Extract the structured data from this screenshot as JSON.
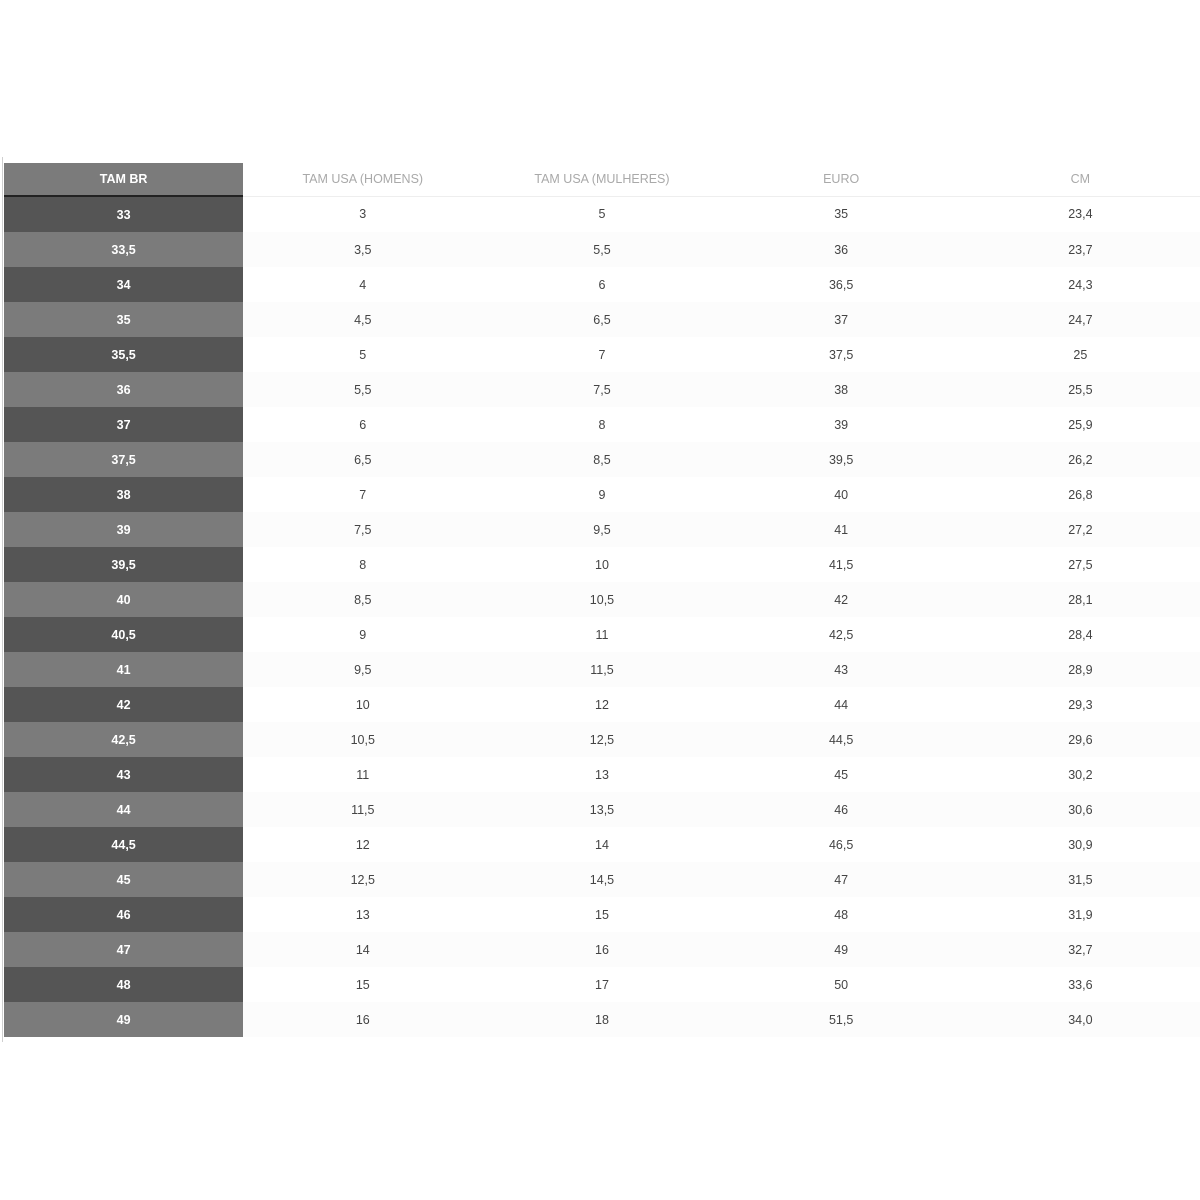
{
  "table": {
    "headers": [
      "TAM BR",
      "TAM USA (HOMENS)",
      "TAM USA (MULHERES)",
      "EURO",
      "CM"
    ],
    "rows": [
      [
        "33",
        "3",
        "5",
        "35",
        "23,4"
      ],
      [
        "33,5",
        "3,5",
        "5,5",
        "36",
        "23,7"
      ],
      [
        "34",
        "4",
        "6",
        "36,5",
        "24,3"
      ],
      [
        "35",
        "4,5",
        "6,5",
        "37",
        "24,7"
      ],
      [
        "35,5",
        "5",
        "7",
        "37,5",
        "25"
      ],
      [
        "36",
        "5,5",
        "7,5",
        "38",
        "25,5"
      ],
      [
        "37",
        "6",
        "8",
        "39",
        "25,9"
      ],
      [
        "37,5",
        "6,5",
        "8,5",
        "39,5",
        "26,2"
      ],
      [
        "38",
        "7",
        "9",
        "40",
        "26,8"
      ],
      [
        "39",
        "7,5",
        "9,5",
        "41",
        "27,2"
      ],
      [
        "39,5",
        "8",
        "10",
        "41,5",
        "27,5"
      ],
      [
        "40",
        "8,5",
        "10,5",
        "42",
        "28,1"
      ],
      [
        "40,5",
        "9",
        "11",
        "42,5",
        "28,4"
      ],
      [
        "41",
        "9,5",
        "11,5",
        "43",
        "28,9"
      ],
      [
        "42",
        "10",
        "12",
        "44",
        "29,3"
      ],
      [
        "42,5",
        "10,5",
        "12,5",
        "44,5",
        "29,6"
      ],
      [
        "43",
        "11",
        "13",
        "45",
        "30,2"
      ],
      [
        "44",
        "11,5",
        "13,5",
        "46",
        "30,6"
      ],
      [
        "44,5",
        "12",
        "14",
        "46,5",
        "30,9"
      ],
      [
        "45",
        "12,5",
        "14,5",
        "47",
        "31,5"
      ],
      [
        "46",
        "13",
        "15",
        "48",
        "31,9"
      ],
      [
        "47",
        "14",
        "16",
        "49",
        "32,7"
      ],
      [
        "48",
        "15",
        "17",
        "50",
        "33,6"
      ],
      [
        "49",
        "16",
        "18",
        "51,5",
        "34,0"
      ]
    ]
  },
  "colors": {
    "dark_row": "#555555",
    "light_row": "#7b7b7b",
    "header_text": "#a9a9a9"
  }
}
